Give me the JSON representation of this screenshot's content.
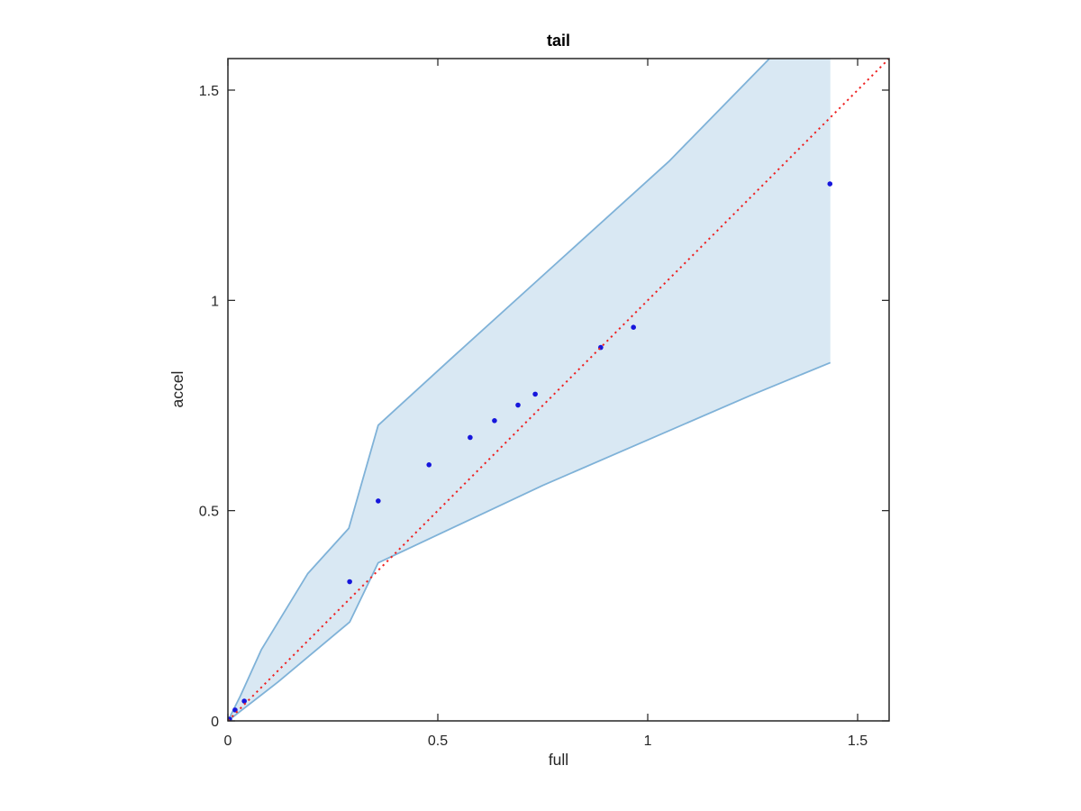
{
  "chart_data": {
    "type": "scatter",
    "title": "tail",
    "xlabel": "full",
    "ylabel": "accel",
    "xlim": [
      0,
      1.575
    ],
    "ylim": [
      0,
      1.575
    ],
    "xticks": [
      0,
      0.5,
      1,
      1.5
    ],
    "yticks": [
      0,
      0.5,
      1,
      1.5
    ],
    "xtick_labels": [
      "0",
      "0.5",
      "1",
      "1.5"
    ],
    "ytick_labels": [
      "0",
      "0.5",
      "1",
      "1.5"
    ],
    "grid": false,
    "box": true,
    "legend": null,
    "axis_color": "#262626",
    "series": [
      {
        "name": "accel-vs-full-points",
        "type": "scatter",
        "color": "#1616dc",
        "marker": "dot",
        "marker_radius": 2.8,
        "points": [
          [
            0.004,
            0.004
          ],
          [
            0.017,
            0.026
          ],
          [
            0.039,
            0.047
          ],
          [
            0.29,
            0.331
          ],
          [
            0.358,
            0.523
          ],
          [
            0.479,
            0.609
          ],
          [
            0.577,
            0.674
          ],
          [
            0.635,
            0.714
          ],
          [
            0.691,
            0.751
          ],
          [
            0.732,
            0.777
          ],
          [
            0.888,
            0.888
          ],
          [
            0.966,
            0.936
          ],
          [
            1.434,
            1.277
          ]
        ]
      },
      {
        "name": "identity-reference-line",
        "type": "line",
        "style": "dotted",
        "color": "#ee2222",
        "width": 2,
        "points": [
          [
            0,
            0
          ],
          [
            1.575,
            1.575
          ]
        ]
      }
    ],
    "band": {
      "name": "confidence-band",
      "fill": "#d9e8f3",
      "edge": "#7fb2d8",
      "edge_width": 1.8,
      "lower": [
        [
          0,
          0
        ],
        [
          0.12,
          0.093
        ],
        [
          0.29,
          0.235
        ],
        [
          0.358,
          0.376
        ],
        [
          0.75,
          0.56
        ],
        [
          1.245,
          0.774
        ],
        [
          1.435,
          0.852
        ]
      ],
      "upper": [
        [
          0,
          0
        ],
        [
          0.03,
          0.06
        ],
        [
          0.08,
          0.17
        ],
        [
          0.19,
          0.35
        ],
        [
          0.288,
          0.458
        ],
        [
          0.358,
          0.703
        ],
        [
          0.53,
          0.86
        ],
        [
          1.05,
          1.33
        ],
        [
          1.29,
          1.575
        ],
        [
          1.435,
          1.575
        ]
      ]
    }
  }
}
